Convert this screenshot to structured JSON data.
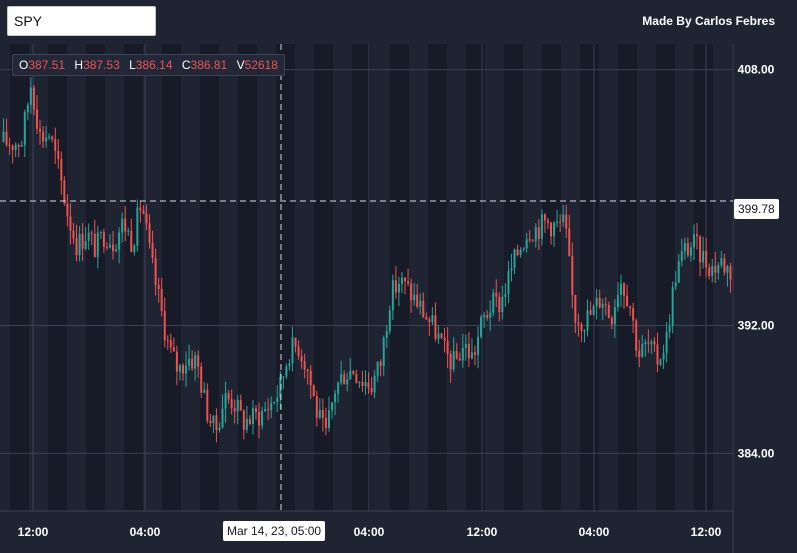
{
  "header": {
    "symbol": "SPY",
    "credit": "Made By Carlos Febres"
  },
  "legend": {
    "o_label": "O",
    "o_value": "387.51",
    "h_label": "H",
    "h_value": "387.53",
    "l_label": "L",
    "l_value": "386.14",
    "c_label": "C",
    "c_value": "386.81",
    "v_label": "V",
    "v_value": "52618"
  },
  "crosshair": {
    "price_label": "399.78",
    "time_label": "Mar 14, 23, 05:00",
    "price": 399.78
  },
  "colors": {
    "up": "#26a69a",
    "down": "#ef5350",
    "background": "#1f2433",
    "session_band": "#161b27",
    "grid": "#3b4254",
    "axis_text": "#ffffff"
  },
  "chart_data": {
    "type": "candlestick",
    "y_ticks": [
      "408.00",
      "392.00",
      "384.00"
    ],
    "y_tick_values": [
      408,
      392,
      384
    ],
    "ylim": [
      380.4,
      409.6
    ],
    "x_ticks": [
      "12:00",
      "04:00",
      "04:00",
      "12:00",
      "04:00",
      "12:00"
    ],
    "close_path": [
      403.5,
      403.4,
      403.6,
      407.2,
      403.8,
      404.0,
      401.7,
      398.9,
      397.0,
      397.8,
      396.8,
      397.8,
      397.2,
      398.5,
      397.2,
      399.8,
      396.1,
      393.3,
      390.5,
      389.2,
      390.0,
      389.8,
      386.9,
      385.3,
      387.5,
      387.3,
      386.0,
      386.2,
      386.5,
      387.1,
      388.0,
      390.4,
      390.8,
      389.4,
      386.7,
      385.0,
      388.0,
      389.0,
      389.3,
      388.6,
      388.3,
      389.7,
      393.8,
      394.8,
      394.2,
      393.4,
      392.5,
      391.6,
      390.2,
      389.6,
      390.8,
      390.0,
      392.2,
      393.3,
      393.4,
      395.2,
      396.8,
      398.0,
      398.1,
      398.5,
      398.2,
      398.4,
      392.7,
      392.3,
      392.8,
      393.9,
      392.5,
      395.0,
      393.6,
      390.2,
      390.8,
      389.8,
      391.0,
      395.2,
      396.7,
      397.1,
      396.3,
      395.6,
      396.0,
      395.4
    ]
  }
}
